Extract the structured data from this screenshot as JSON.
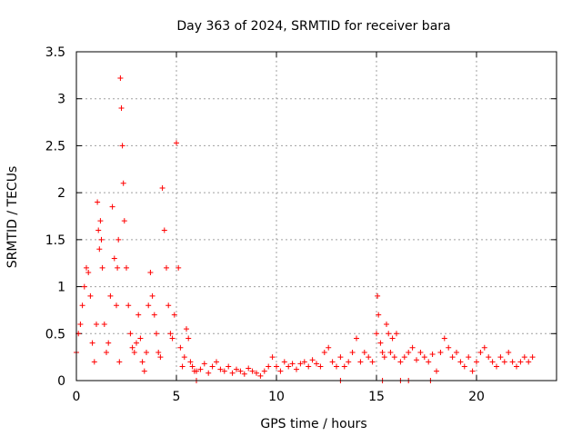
{
  "chart_data": {
    "type": "scatter",
    "title": "Day 363 of 2024, SRMTID for receiver bara",
    "xlabel": "GPS time / hours",
    "ylabel": "SRMTID / TECUs",
    "xlim": [
      0,
      24
    ],
    "ylim": [
      0,
      3.5
    ],
    "x_ticks": [
      0,
      5,
      10,
      15,
      20
    ],
    "x_tick_labels": [
      "0",
      "5",
      "10",
      "15",
      "20"
    ],
    "y_ticks": [
      0,
      0.5,
      1,
      1.5,
      2,
      2.5,
      3,
      3.5
    ],
    "y_tick_labels": [
      "0",
      "0.5",
      "1",
      "1.5",
      "2",
      "2.5",
      "3",
      "3.5"
    ],
    "grid": true,
    "marker": "+",
    "series": [
      {
        "name": "SRMTID",
        "color": "#ff0000",
        "x": [
          0.0,
          0.1,
          0.2,
          0.3,
          0.4,
          0.5,
          0.6,
          0.7,
          0.8,
          0.9,
          1.0,
          1.05,
          1.1,
          1.15,
          1.2,
          1.25,
          1.3,
          1.4,
          1.5,
          1.6,
          1.7,
          1.8,
          1.9,
          2.0,
          2.05,
          2.1,
          2.15,
          2.2,
          2.25,
          2.3,
          2.35,
          2.4,
          2.5,
          2.6,
          2.7,
          2.8,
          2.9,
          3.0,
          3.1,
          3.2,
          3.3,
          3.4,
          3.5,
          3.6,
          3.7,
          3.8,
          3.9,
          4.0,
          4.1,
          4.2,
          4.3,
          4.4,
          4.5,
          4.6,
          4.7,
          4.8,
          4.9,
          5.0,
          5.1,
          5.2,
          5.3,
          5.4,
          5.5,
          5.6,
          5.7,
          5.8,
          5.9,
          6.0,
          6.2,
          6.4,
          6.6,
          6.8,
          7.0,
          7.2,
          7.4,
          7.6,
          7.8,
          8.0,
          8.2,
          8.4,
          8.6,
          8.8,
          9.0,
          9.2,
          9.4,
          9.6,
          9.8,
          10.0,
          10.2,
          10.4,
          10.6,
          10.8,
          11.0,
          11.2,
          11.4,
          11.6,
          11.8,
          12.0,
          12.2,
          12.4,
          12.6,
          12.8,
          13.0,
          13.2,
          13.4,
          13.6,
          13.8,
          14.0,
          14.2,
          14.4,
          14.6,
          14.8,
          15.0,
          15.05,
          15.1,
          15.2,
          15.3,
          15.4,
          15.5,
          15.6,
          15.7,
          15.8,
          15.9,
          16.0,
          16.2,
          16.4,
          16.6,
          16.8,
          17.0,
          17.2,
          17.4,
          17.6,
          17.8,
          18.0,
          18.2,
          18.4,
          18.6,
          18.8,
          19.0,
          19.2,
          19.4,
          19.6,
          19.8,
          20.0,
          20.2,
          20.4,
          20.6,
          20.8,
          21.0,
          21.2,
          21.4,
          21.6,
          21.8,
          22.0,
          22.2,
          22.4,
          22.6,
          22.8,
          6.0,
          13.2,
          15.3,
          16.2,
          16.6,
          17.7
        ],
        "y": [
          0.3,
          0.5,
          0.6,
          0.8,
          1.0,
          1.2,
          1.15,
          0.9,
          0.4,
          0.2,
          0.6,
          1.9,
          1.6,
          1.4,
          1.7,
          1.5,
          1.2,
          0.6,
          0.3,
          0.4,
          0.9,
          1.85,
          1.3,
          0.8,
          1.2,
          1.5,
          0.2,
          3.22,
          2.9,
          2.5,
          2.1,
          1.7,
          1.2,
          0.8,
          0.5,
          0.35,
          0.3,
          0.4,
          0.7,
          0.45,
          0.2,
          0.1,
          0.3,
          0.8,
          1.15,
          0.9,
          0.7,
          0.5,
          0.3,
          0.25,
          2.05,
          1.6,
          1.2,
          0.8,
          0.5,
          0.45,
          0.7,
          2.53,
          1.2,
          0.35,
          0.15,
          0.25,
          0.55,
          0.45,
          0.2,
          0.15,
          0.1,
          0.1,
          0.12,
          0.18,
          0.08,
          0.15,
          0.2,
          0.12,
          0.1,
          0.15,
          0.08,
          0.12,
          0.1,
          0.07,
          0.13,
          0.1,
          0.08,
          0.05,
          0.1,
          0.15,
          0.25,
          0.15,
          0.1,
          0.2,
          0.15,
          0.18,
          0.12,
          0.18,
          0.2,
          0.15,
          0.22,
          0.18,
          0.15,
          0.3,
          0.35,
          0.2,
          0.15,
          0.25,
          0.15,
          0.2,
          0.3,
          0.45,
          0.2,
          0.3,
          0.25,
          0.2,
          0.5,
          0.9,
          0.7,
          0.4,
          0.3,
          0.25,
          0.6,
          0.5,
          0.3,
          0.45,
          0.25,
          0.5,
          0.2,
          0.25,
          0.3,
          0.35,
          0.22,
          0.3,
          0.25,
          0.2,
          0.28,
          0.1,
          0.3,
          0.45,
          0.35,
          0.25,
          0.3,
          0.2,
          0.15,
          0.25,
          0.1,
          0.2,
          0.3,
          0.35,
          0.25,
          0.2,
          0.15,
          0.25,
          0.2,
          0.3,
          0.2,
          0.15,
          0.2,
          0.25,
          0.2,
          0.25,
          0.0,
          0.0,
          0.0,
          0.0,
          0.0,
          0.0
        ]
      }
    ]
  }
}
